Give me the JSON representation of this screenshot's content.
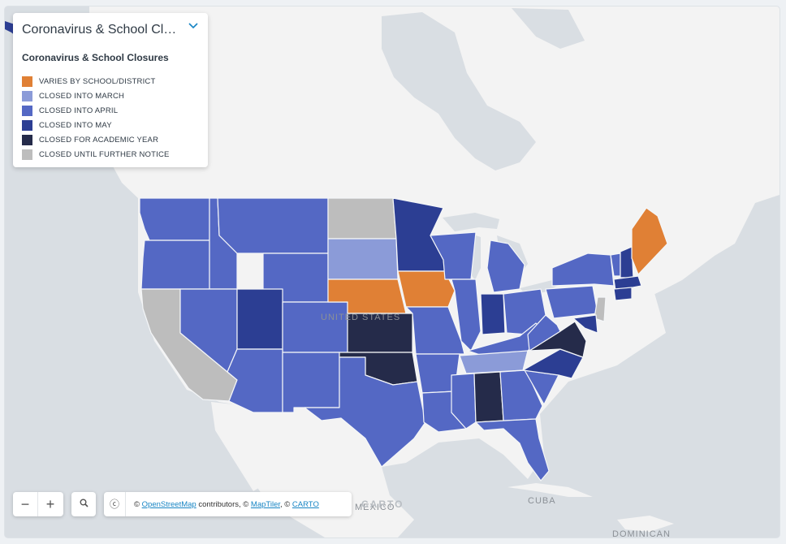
{
  "colors": {
    "ocean": "#d9dee3",
    "land": "#f3f3f3",
    "varies": "#e08035",
    "march": "#8b9bd8",
    "april": "#5468c4",
    "may": "#2c3e93",
    "academic_year": "#252b4a",
    "further_notice": "#bdbdbd"
  },
  "legend": {
    "title": "Coronavirus & School Clo...",
    "subtitle": "Coronavirus & School Closures",
    "expand_icon": "chevron-down-icon",
    "items": [
      {
        "label": "VARIES BY SCHOOL/DISTRICT",
        "color": "#e08035"
      },
      {
        "label": "CLOSED INTO MARCH",
        "color": "#8b9bd8"
      },
      {
        "label": "CLOSED INTO APRIL",
        "color": "#5468c4"
      },
      {
        "label": "CLOSED INTO MAY",
        "color": "#2c3e93"
      },
      {
        "label": "CLOSED FOR ACADEMIC YEAR",
        "color": "#252b4a"
      },
      {
        "label": "CLOSED UNTIL FURTHER NOTICE",
        "color": "#bdbdbd"
      }
    ]
  },
  "place_labels": {
    "country": "UNITED STATES",
    "mexico": "MEXICO",
    "cuba": "CUBA",
    "dominican": "DOMINICAN"
  },
  "controls": {
    "zoom_out": "−",
    "zoom_in": "+",
    "search_icon": "search-icon",
    "info_icon": "info-icon",
    "info_glyph": "ⓒ"
  },
  "attribution": {
    "prefix": "© ",
    "osm": "OpenStreetMap",
    "mid": " contributors, © ",
    "maptiler": "MapTiler",
    "sep": ", © ",
    "carto": "CARTO"
  },
  "watermark": "CARTO"
}
